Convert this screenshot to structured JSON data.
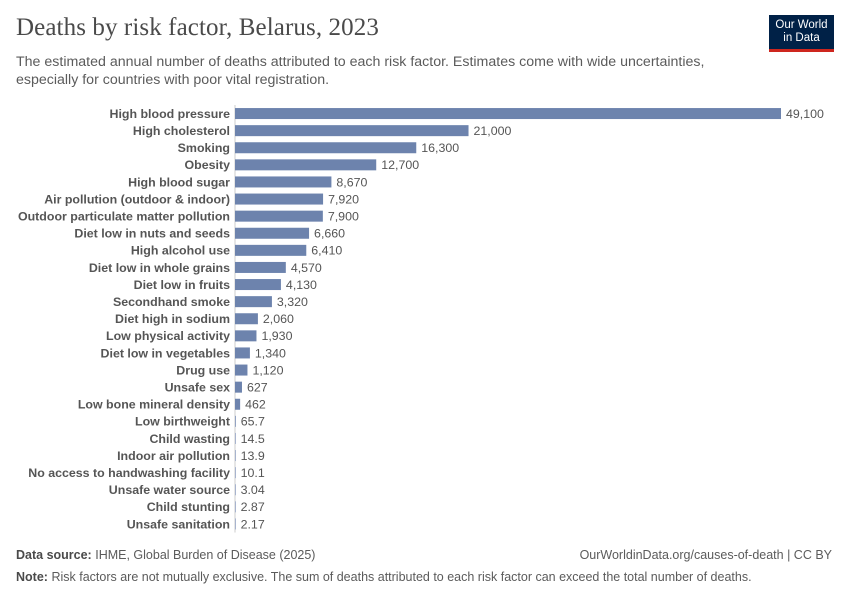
{
  "header": {
    "title": "Deaths by risk factor, Belarus, 2023",
    "subtitle": "The estimated annual number of deaths attributed to each risk factor. Estimates come with wide uncertainties, especially for countries with poor vital registration."
  },
  "logo": {
    "line1": "Our World",
    "line2": "in Data"
  },
  "colors": {
    "bar": "#6d83ad",
    "axis": "#cccccc",
    "logo_bg": "#002147",
    "logo_accent": "#ce261e"
  },
  "chart_data": {
    "type": "bar",
    "orientation": "horizontal",
    "categories": [
      "High blood pressure",
      "High cholesterol",
      "Smoking",
      "Obesity",
      "High blood sugar",
      "Air pollution (outdoor & indoor)",
      "Outdoor particulate matter pollution",
      "Diet low in nuts and seeds",
      "High alcohol use",
      "Diet low in whole grains",
      "Diet low in fruits",
      "Secondhand smoke",
      "Diet high in sodium",
      "Low physical activity",
      "Diet low in vegetables",
      "Drug use",
      "Unsafe sex",
      "Low bone mineral density",
      "Low birthweight",
      "Child wasting",
      "Indoor air pollution",
      "No access to handwashing facility",
      "Unsafe water source",
      "Child stunting",
      "Unsafe sanitation"
    ],
    "values": [
      49100,
      21000,
      16300,
      12700,
      8670,
      7920,
      7900,
      6660,
      6410,
      4570,
      4130,
      3320,
      2060,
      1930,
      1340,
      1120,
      627,
      462,
      65.7,
      14.5,
      13.9,
      10.1,
      3.04,
      2.87,
      2.17
    ],
    "value_labels": [
      "49,100",
      "21,000",
      "16,300",
      "12,700",
      "8,670",
      "7,920",
      "7,900",
      "6,660",
      "6,410",
      "4,570",
      "4,130",
      "3,320",
      "2,060",
      "1,930",
      "1,340",
      "1,120",
      "627",
      "462",
      "65.7",
      "14.5",
      "13.9",
      "10.1",
      "3.04",
      "2.87",
      "2.17"
    ],
    "xlim": [
      0,
      49100
    ],
    "grid": false
  },
  "footer": {
    "source_label": "Data source:",
    "source_text": "IHME, Global Burden of Disease (2025)",
    "url": "OurWorldinData.org/causes-of-death | CC BY",
    "note_label": "Note:",
    "note_text": "Risk factors are not mutually exclusive. The sum of deaths attributed to each risk factor can exceed the total number of deaths."
  }
}
